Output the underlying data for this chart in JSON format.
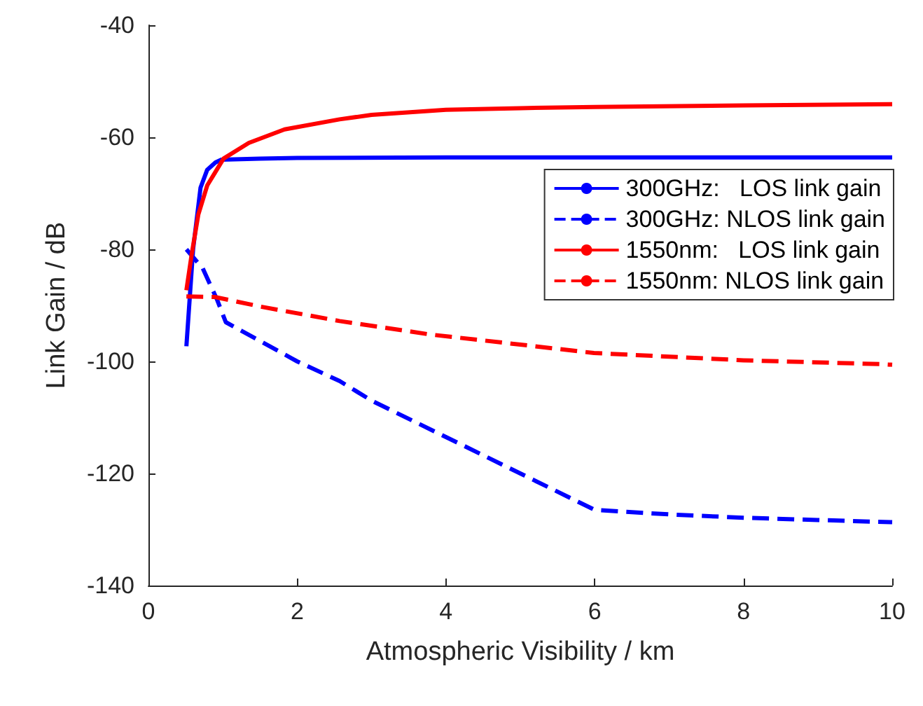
{
  "chart_data": {
    "type": "line",
    "xlabel": "Atmospheric Visibility / km",
    "ylabel": "Link Gain / dB",
    "xlim": [
      0,
      10
    ],
    "xticks": [
      0,
      2,
      4,
      6,
      8,
      10
    ],
    "ylim": [
      -140,
      -40
    ],
    "yticks": [
      -140,
      -120,
      -100,
      -80,
      -60,
      -40
    ],
    "grid": false,
    "legend": "top right",
    "marker": "none",
    "series": [
      {
        "name": "300GHz:   LOS link gain",
        "color": "#0000ff",
        "line_style": "solid",
        "x": [
          0.51,
          0.6,
          0.7,
          0.79,
          0.9,
          0.98,
          1.5,
          2,
          4,
          6,
          8,
          10
        ],
        "values": [
          -97.3,
          -80,
          -69,
          -65.8,
          -64.5,
          -64,
          -63.8,
          -63.7,
          -63.6,
          -63.6,
          -63.6,
          -63.6
        ]
      },
      {
        "name": "300GHz: NLOS link gain",
        "color": "#0000ff",
        "line_style": "dashed",
        "x": [
          0.51,
          0.73,
          0.92,
          1.04,
          2,
          2.57,
          3,
          4,
          5,
          6,
          7,
          8,
          9,
          10
        ],
        "values": [
          -80,
          -83.4,
          -88.9,
          -93,
          -100,
          -103.5,
          -107,
          -113.5,
          -120,
          -126.5,
          -127.3,
          -127.9,
          -128.3,
          -128.7
        ]
      },
      {
        "name": "1550nm:   LOS link gain",
        "color": "#ff0000",
        "line_style": "solid",
        "x": [
          0.51,
          0.58,
          0.67,
          0.79,
          1.01,
          1.35,
          1.83,
          2.57,
          3,
          4,
          5,
          6,
          8,
          10
        ],
        "values": [
          -87.3,
          -81,
          -73.8,
          -68.6,
          -63.8,
          -61,
          -58.6,
          -56.8,
          -56,
          -55.1,
          -54.8,
          -54.6,
          -54.3,
          -54.1
        ]
      },
      {
        "name": "1550nm: NLOS link gain",
        "color": "#ff0000",
        "line_style": "dashed",
        "x": [
          0.51,
          0.89,
          1.5,
          2.57,
          3.79,
          5,
          5.99,
          8,
          9.87,
          10
        ],
        "values": [
          -88.4,
          -88.5,
          -90.2,
          -92.8,
          -95.2,
          -97,
          -98.5,
          -99.8,
          -100.5,
          -100.6
        ]
      }
    ]
  }
}
